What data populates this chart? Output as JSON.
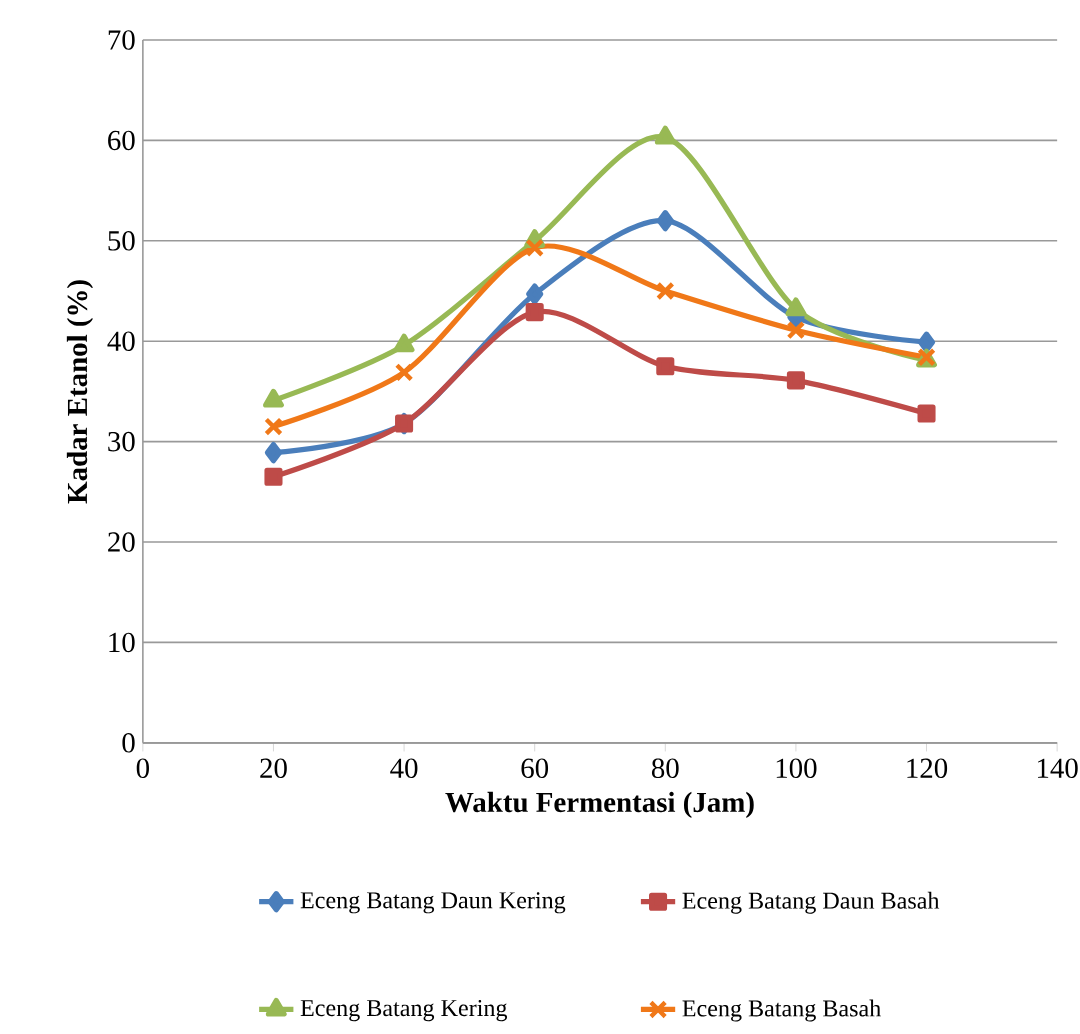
{
  "chart_data": {
    "type": "line",
    "xlabel": "Waktu Fermentasi (Jam)",
    "ylabel": "Kadar Etanol (%)",
    "x": [
      20,
      40,
      60,
      80,
      100,
      120
    ],
    "xlim": [
      0,
      140
    ],
    "xticks": [
      0,
      20,
      40,
      60,
      80,
      100,
      120,
      140
    ],
    "ylim": [
      0,
      70
    ],
    "yticks": [
      0,
      10,
      20,
      30,
      40,
      50,
      60,
      70
    ],
    "grid": "y",
    "legend": "bottom",
    "line_style": "solid",
    "series": [
      {
        "name": "Eceng Batang Daun Kering",
        "color": "#4a7ebb",
        "marker": "diamond",
        "values": [
          28.9,
          31.8,
          44.7,
          52,
          42.4,
          39.9
        ]
      },
      {
        "name": "Eceng Batang Daun Basah",
        "color": "#be4b48",
        "marker": "square",
        "values": [
          26.5,
          31.8,
          42.9,
          37.5,
          36.1,
          32.8
        ]
      },
      {
        "name": "Eceng Batang Kering",
        "color": "#98b954",
        "marker": "triangle",
        "values": [
          34.1,
          39.6,
          50,
          60.3,
          43.2,
          38.1
        ]
      },
      {
        "name": "Eceng Batang Basah",
        "color": "#f07818",
        "marker": "cross",
        "values": [
          31.5,
          36.9,
          49.3,
          45,
          41.1,
          38.4
        ]
      }
    ]
  }
}
